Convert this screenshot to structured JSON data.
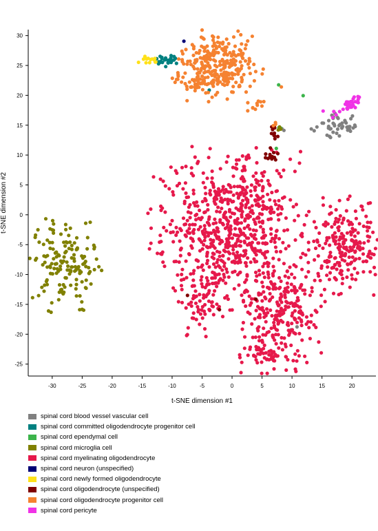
{
  "chart_data": {
    "type": "scatter",
    "title": "",
    "xlabel": "t-SNE dimension #1",
    "ylabel": "t-SNE dimension #2",
    "xlim": [
      -34,
      24
    ],
    "ylim": [
      -27,
      31
    ],
    "xticks": [
      -30,
      -25,
      -20,
      -15,
      -10,
      -5,
      0,
      5,
      10,
      15,
      20
    ],
    "yticks": [
      -25,
      -20,
      -15,
      -10,
      -5,
      0,
      5,
      10,
      15,
      20,
      25,
      30
    ],
    "grid": false,
    "legend_position": "bottom",
    "series": [
      {
        "name": "spinal cord blood vessel vascular cell",
        "color": "#808080",
        "clusters": [
          {
            "cx": 17.5,
            "cy": 15,
            "rx": 2.6,
            "ry": 1.5,
            "n": 45
          },
          {
            "cx": 8.5,
            "cy": 14.5,
            "rx": 0.3,
            "ry": 0.3,
            "n": 2
          },
          {
            "cx": 10.5,
            "cy": -19,
            "rx": 0.4,
            "ry": 0.4,
            "n": 2
          }
        ]
      },
      {
        "name": "spinal cord committed oligodendrocyte progenitor cell",
        "color": "#008080",
        "clusters": [
          {
            "cx": -11,
            "cy": 25.8,
            "rx": 1.3,
            "ry": 0.6,
            "n": 25
          },
          {
            "cx": -4,
            "cy": 21,
            "rx": 0.2,
            "ry": 0.2,
            "n": 1
          }
        ]
      },
      {
        "name": "spinal cord ependymal cell",
        "color": "#3cb44b",
        "clusters": [
          {
            "cx": 12,
            "cy": 20,
            "rx": 0.2,
            "ry": 0.2,
            "n": 1
          },
          {
            "cx": 7.8,
            "cy": 21.5,
            "rx": 0.2,
            "ry": 0.2,
            "n": 1
          },
          {
            "cx": 7.2,
            "cy": 11.2,
            "rx": 0.2,
            "ry": 0.2,
            "n": 1
          },
          {
            "cx": 7.8,
            "cy": 14.5,
            "rx": 0.3,
            "ry": 0.3,
            "n": 2
          }
        ]
      },
      {
        "name": "spinal cord microglia cell",
        "color": "#808000",
        "clusters": [
          {
            "cx": -27.5,
            "cy": -8.5,
            "rx": 3.8,
            "ry": 4.5,
            "n": 150
          },
          {
            "cx": 8,
            "cy": 14.5,
            "rx": 0.5,
            "ry": 0.3,
            "n": 3
          }
        ]
      },
      {
        "name": "spinal cord myelinating oligodendrocyte",
        "color": "#e6194b",
        "clusters": [
          {
            "cx": -1,
            "cy": -2.5,
            "rx": 7.5,
            "ry": 8.0,
            "n": 650
          },
          {
            "cx": -5,
            "cy": -14,
            "rx": 2.0,
            "ry": 4.0,
            "n": 60
          },
          {
            "cx": 8.5,
            "cy": -17,
            "rx": 4.0,
            "ry": 5.5,
            "n": 260
          },
          {
            "cx": 5.5,
            "cy": -23.5,
            "rx": 2.5,
            "ry": 1.0,
            "n": 40
          },
          {
            "cx": 18,
            "cy": -5,
            "rx": 3.8,
            "ry": 4.8,
            "n": 230
          },
          {
            "cx": 3,
            "cy": 2,
            "rx": 3.5,
            "ry": 3.0,
            "n": 60
          }
        ]
      },
      {
        "name": "spinal cord neuron (unspecified)",
        "color": "#000075",
        "clusters": [
          {
            "cx": -8,
            "cy": 29,
            "rx": 0.2,
            "ry": 0.2,
            "n": 1
          }
        ]
      },
      {
        "name": "spinal cord newly formed oligodendrocyte",
        "color": "#ffe119",
        "clusters": [
          {
            "cx": -14,
            "cy": 26,
            "rx": 1.0,
            "ry": 0.4,
            "n": 15
          }
        ]
      },
      {
        "name": "spinal cord oligodendrocyte (unspecified)",
        "color": "#800000",
        "clusters": [
          {
            "cx": 6.3,
            "cy": 10.2,
            "rx": 0.8,
            "ry": 0.9,
            "n": 12
          },
          {
            "cx": 6.8,
            "cy": 13.2,
            "rx": 0.5,
            "ry": 1.2,
            "n": 10
          },
          {
            "cx": -7.5,
            "cy": -13.5,
            "rx": 0.2,
            "ry": 0.2,
            "n": 1
          },
          {
            "cx": -2,
            "cy": -15.8,
            "rx": 0.2,
            "ry": 0.2,
            "n": 1
          },
          {
            "cx": 4,
            "cy": -14,
            "rx": 0.2,
            "ry": 0.2,
            "n": 1
          }
        ]
      },
      {
        "name": "spinal cord oligodendrocyte progenitor cell",
        "color": "#f58231",
        "clusters": [
          {
            "cx": -2,
            "cy": 25,
            "rx": 4.2,
            "ry": 3.5,
            "n": 280
          },
          {
            "cx": -6,
            "cy": 22,
            "rx": 2.2,
            "ry": 1.0,
            "n": 30
          },
          {
            "cx": 4,
            "cy": 18.5,
            "rx": 1.2,
            "ry": 1.2,
            "n": 10
          },
          {
            "cx": -9,
            "cy": 23,
            "rx": 0.8,
            "ry": 0.6,
            "n": 6
          },
          {
            "cx": 7,
            "cy": 15,
            "rx": 0.3,
            "ry": 0.3,
            "n": 3
          },
          {
            "cx": 8,
            "cy": 21.5,
            "rx": 0.2,
            "ry": 0.2,
            "n": 1
          }
        ]
      },
      {
        "name": "spinal cord pericyte",
        "color": "#f032e6",
        "clusters": [
          {
            "cx": 20,
            "cy": 18.8,
            "rx": 1.0,
            "ry": 0.8,
            "n": 25
          },
          {
            "cx": 17.3,
            "cy": 17,
            "rx": 0.6,
            "ry": 0.5,
            "n": 4
          },
          {
            "cx": 15.3,
            "cy": 17.2,
            "rx": 0.2,
            "ry": 0.2,
            "n": 1
          }
        ]
      }
    ]
  }
}
